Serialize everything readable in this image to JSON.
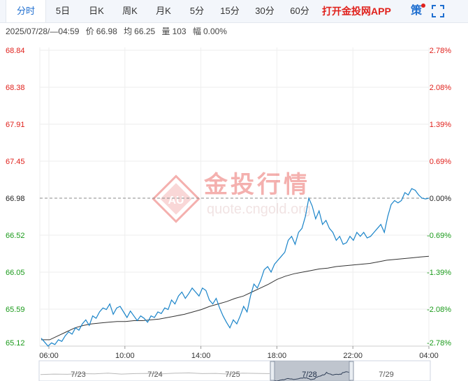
{
  "tabs": [
    {
      "label": "分时",
      "active": true
    },
    {
      "label": "5日"
    },
    {
      "label": "日K"
    },
    {
      "label": "周K"
    },
    {
      "label": "月K"
    },
    {
      "label": "5分"
    },
    {
      "label": "15分"
    },
    {
      "label": "30分"
    },
    {
      "label": "60分"
    }
  ],
  "app_link": "打开金投网APP",
  "strategy_label": "策",
  "icons": {
    "fullscreen": "fullscreen-icon"
  },
  "status": {
    "datetime": "2025/07/28/—04:59",
    "price_label": "价",
    "price": "66.98",
    "avg_label": "均",
    "avg": "66.25",
    "volume_label": "量",
    "volume": "103",
    "change_label": "幅",
    "change": "0.00%"
  },
  "watermark": {
    "brand": "金投行情",
    "domain": "quote.cngold.org",
    "logo": "AU"
  },
  "colors": {
    "up": "#e0201b",
    "down": "#1a9a1a",
    "price_line": "#1a84c9",
    "avg_line": "#333333",
    "grid": "#eeeeee",
    "ref_line": "#888888"
  },
  "chart_data": {
    "type": "line",
    "ref_price": 66.98,
    "ylim": [
      65.12,
      68.84
    ],
    "price_ticks": [
      "68.84",
      "68.38",
      "67.91",
      "67.45",
      "66.98",
      "66.52",
      "66.05",
      "65.59",
      "65.12"
    ],
    "pct_ticks": [
      "2.78%",
      "2.08%",
      "1.39%",
      "0.69%",
      "0.00%",
      "-0.69%",
      "-1.39%",
      "-2.08%",
      "-2.78%"
    ],
    "x_ticks": [
      "06:00",
      "10:00",
      "14:00",
      "18:00",
      "22:00",
      "04:00"
    ],
    "series": [
      {
        "values": [
          65.22,
          65.17,
          65.12,
          65.16,
          65.14,
          65.2,
          65.18,
          65.25,
          65.3,
          65.27,
          65.35,
          65.32,
          65.4,
          65.45,
          65.38,
          65.5,
          65.47,
          65.55,
          65.6,
          65.58,
          65.65,
          65.52,
          65.6,
          65.62,
          65.55,
          65.48,
          65.56,
          65.5,
          65.44,
          65.5,
          65.47,
          65.42,
          65.5,
          65.48,
          65.55,
          65.53,
          65.6,
          65.58,
          65.7,
          65.65,
          65.75,
          65.8,
          65.72,
          65.78,
          65.85,
          65.8,
          65.75,
          65.85,
          65.82,
          65.7,
          65.65,
          65.72,
          65.6,
          65.5,
          65.42,
          65.35,
          65.45,
          65.4,
          65.5,
          65.62,
          65.55,
          65.75,
          65.9,
          65.85,
          65.95,
          66.08,
          66.12,
          66.05,
          66.15,
          66.2,
          66.25,
          66.3,
          66.45,
          66.5,
          66.4,
          66.55,
          66.6,
          66.75,
          66.98,
          66.88,
          66.72,
          66.82,
          66.65,
          66.7,
          66.6,
          66.55,
          66.45,
          66.5,
          66.4,
          66.42,
          66.5,
          66.45,
          66.55,
          66.5,
          66.55,
          66.48,
          66.5,
          66.55,
          66.6,
          66.65,
          66.55,
          66.75,
          66.9,
          66.95,
          66.92,
          66.95,
          67.05,
          67.02,
          67.1,
          67.08,
          67.02,
          66.98,
          66.97,
          66.98
        ],
        "avg": [
          65.2,
          65.2,
          65.25,
          65.3,
          65.35,
          65.38,
          65.4,
          65.41,
          65.42,
          65.43,
          65.43,
          65.44,
          65.44,
          65.45,
          65.46,
          65.48,
          65.5,
          65.52,
          65.55,
          65.58,
          65.62,
          65.65,
          65.68,
          65.72,
          65.75,
          65.8,
          65.85,
          65.9,
          65.96,
          66.0,
          66.03,
          66.05,
          66.07,
          66.09,
          66.1,
          66.12,
          66.13,
          66.14,
          66.15,
          66.16,
          66.18,
          66.2,
          66.21,
          66.22,
          66.23,
          66.24,
          66.25
        ]
      }
    ],
    "nav_dates": [
      "7/23",
      "7/24",
      "7/25",
      "7/28",
      "7/29"
    ]
  }
}
